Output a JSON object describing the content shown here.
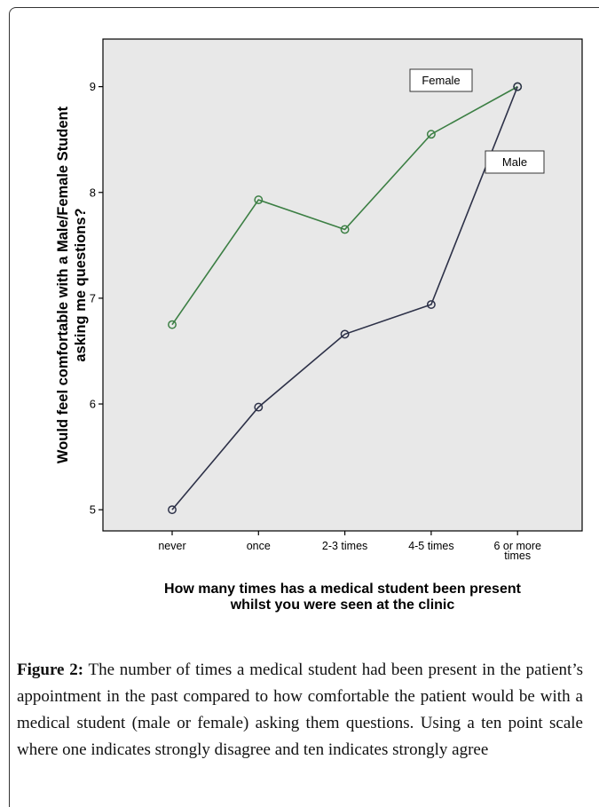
{
  "chart_data": {
    "type": "line",
    "categories": [
      "never",
      "once",
      "2-3 times",
      "4-5 times",
      "6 or more times"
    ],
    "category_labels": [
      [
        "never"
      ],
      [
        "once"
      ],
      [
        "2-3 times"
      ],
      [
        "4-5 times"
      ],
      [
        "6 or more",
        "times"
      ]
    ],
    "series": [
      {
        "name": "Female",
        "values": [
          6.75,
          7.93,
          7.65,
          8.55,
          9.0
        ],
        "color": "#3c7f44"
      },
      {
        "name": "Male",
        "values": [
          5.0,
          5.97,
          6.66,
          6.94,
          9.0
        ],
        "color": "#2d3148"
      }
    ],
    "yticks": [
      5,
      6,
      7,
      8,
      9
    ],
    "ylim": [
      4.8,
      9.45
    ],
    "ylabel": [
      "Would feel comfortable with a Male/Female Student",
      "asking me questions?"
    ],
    "xlabel": [
      "How many times has a medical student been present",
      "whilst you were seen at the clinic"
    ],
    "plot_background": "#e8e8e8",
    "grid": false
  },
  "caption": {
    "lead": "Figure 2:",
    "text": " The number of times a medical student had been present in the patient’s appointment in the past compared to how comfortable the patient would be with a medical student (male or female) asking them questions. Using a ten point scale where one indicates strongly disagree and ten indicates strongly agree"
  }
}
